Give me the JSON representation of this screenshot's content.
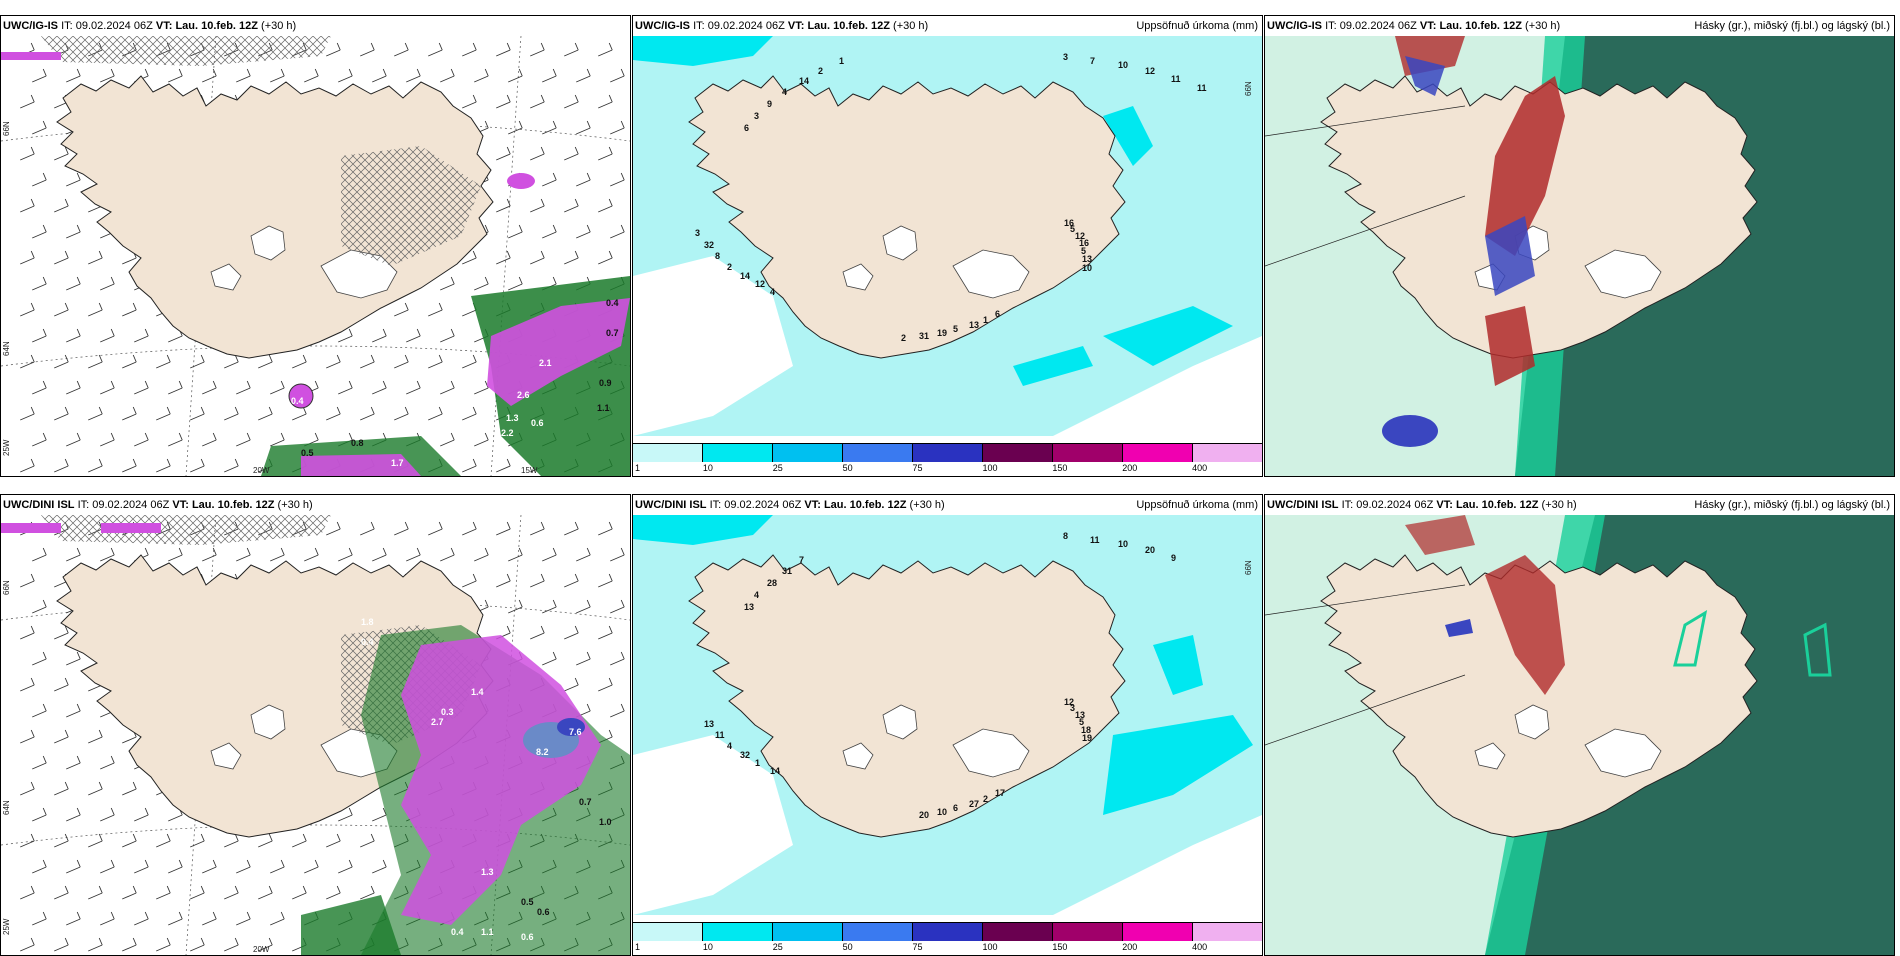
{
  "panels": [
    {
      "model": "UWC/IG-IS",
      "it_label": "IT:",
      "it_value": "09.02.2024 06Z",
      "vt_label": "VT:",
      "vt_value": "Lau. 10.feb. 12Z",
      "lead": "(+30 h)",
      "right_title": "",
      "type": "wind",
      "axis_labels": [
        "66N",
        "64N",
        "25W",
        "20W",
        "15W"
      ],
      "values": [
        "0.4",
        "0.7",
        "2.1",
        "2.6",
        "1.3",
        "1.1",
        "0.4",
        "0.8",
        "0.5",
        "1.7",
        "0.6",
        "2.2",
        "0.9"
      ]
    },
    {
      "model": "UWC/IG-IS",
      "it_label": "IT:",
      "it_value": "09.02.2024 06Z",
      "vt_label": "VT:",
      "vt_value": "Lau. 10.feb. 12Z",
      "lead": "(+30 h)",
      "right_title": "Uppsöfnuð úrkoma (mm)",
      "type": "precip",
      "axis_labels": [
        "66N"
      ],
      "values": [
        "16",
        "6",
        "4",
        "6",
        "3",
        "5",
        "1",
        "12",
        "3",
        "7",
        "12",
        "13",
        "14",
        "9",
        "10",
        "16",
        "5",
        "2",
        "4",
        "12",
        "5",
        "19",
        "8",
        "14",
        "11",
        "13",
        "31",
        "32",
        "2",
        "11",
        "10",
        "2",
        "3",
        "1"
      ]
    },
    {
      "model": "UWC/IG-IS",
      "it_label": "IT:",
      "it_value": "09.02.2024 06Z",
      "vt_label": "VT:",
      "vt_value": "Lau. 10.feb. 12Z",
      "lead": "(+30 h)",
      "right_title": "Hásky (gr.), miðský (fj.bl.) og lágský (bl.)",
      "type": "cloud"
    },
    {
      "model": "UWC/DINI ISL",
      "it_label": "IT:",
      "it_value": "09.02.2024 06Z",
      "vt_label": "VT:",
      "vt_value": "Lau. 10.feb. 12Z",
      "lead": "(+30 h)",
      "right_title": "",
      "type": "wind",
      "axis_labels": [
        "66N",
        "64N",
        "25W",
        "20W"
      ],
      "values": [
        "1.8",
        "0.4",
        "0.3",
        "1.4",
        "2.7",
        "7.6",
        "8.2",
        "0.7",
        "1.0",
        "1.3",
        "0.5",
        "0.6",
        "1.1",
        "0.4",
        "0.6"
      ]
    },
    {
      "model": "UWC/DINI ISL",
      "it_label": "IT:",
      "it_value": "09.02.2024 06Z",
      "vt_label": "VT:",
      "vt_value": "Lau. 10.feb. 12Z",
      "lead": "(+30 h)",
      "right_title": "Uppsöfnuð úrkoma (mm)",
      "type": "precip",
      "axis_labels": [
        "66N"
      ],
      "values": [
        "12",
        "17",
        "14",
        "13",
        "8",
        "3",
        "2",
        "1",
        "4",
        "11",
        "13",
        "27",
        "32",
        "28",
        "10",
        "5",
        "6",
        "4",
        "31",
        "20",
        "18",
        "10",
        "11",
        "7",
        "9",
        "19",
        "20",
        "13"
      ]
    },
    {
      "model": "UWC/DINI ISL",
      "it_label": "IT:",
      "it_value": "09.02.2024 06Z",
      "vt_label": "VT:",
      "vt_value": "Lau. 10.feb. 12Z",
      "lead": "(+30 h)",
      "right_title": "Hásky (gr.), miðský (fj.bl.) og lágský (bl.)",
      "type": "cloud"
    }
  ],
  "legend": {
    "labels": [
      "1",
      "10",
      "25",
      "50",
      "75",
      "100",
      "150",
      "200",
      "400"
    ],
    "colors": [
      "#c8f8f8",
      "#00e8f0",
      "#00c0f0",
      "#3a7af0",
      "#2a32c0",
      "#6a0050",
      "#a0006a",
      "#f000b0",
      "#f0b0f0"
    ]
  },
  "colors": {
    "land": "#f2e4d4",
    "sea_precip_light": "#b0f4f4",
    "sea_precip_mid": "#00e8f0",
    "cloud_high": "#2a6a5a",
    "cloud_green": "#1ad09a",
    "cloud_red": "#b02a2a",
    "cloud_blue": "#3a46c0",
    "precip_magenta": "#d050e0",
    "precip_green": "#1a7a2a"
  }
}
